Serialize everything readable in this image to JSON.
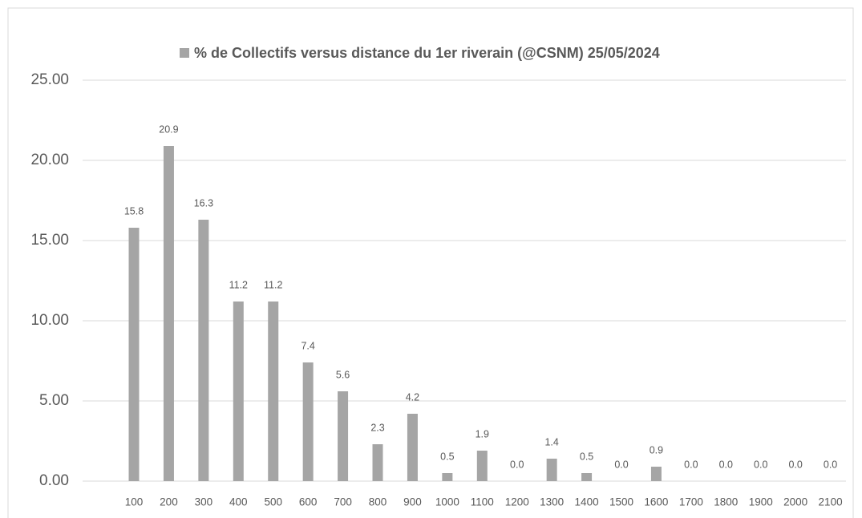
{
  "chart_data": {
    "type": "bar",
    "categories": [
      "100",
      "200",
      "300",
      "400",
      "500",
      "600",
      "700",
      "800",
      "900",
      "1000",
      "1100",
      "1200",
      "1300",
      "1400",
      "1500",
      "1600",
      "1700",
      "1800",
      "1900",
      "2000",
      "2100"
    ],
    "series": [
      {
        "name": "% de Collectifs versus distance du 1er riverain (@CSNM) 25/05/2024",
        "color": "#a5a5a5",
        "values": [
          15.8,
          20.9,
          16.3,
          11.2,
          11.2,
          7.4,
          5.6,
          2.3,
          4.2,
          0.5,
          1.9,
          0,
          1.4,
          0.5,
          0,
          0.9,
          0,
          0,
          0,
          0,
          0
        ],
        "value_labels": [
          "15.8",
          "20.9",
          "16.3",
          "11.2",
          "11.2",
          "7.4",
          "5.6",
          "2.3",
          "4.2",
          "0.5",
          "1.9",
          "0.0",
          "1.4",
          "0.5",
          "0.0",
          "0.9",
          "0.0",
          "0.0",
          "0.0",
          "0.0",
          "0.0"
        ]
      }
    ],
    "ylim": [
      0,
      25
    ],
    "yticks": [
      {
        "value": 0,
        "label": "0.00"
      },
      {
        "value": 5,
        "label": "5.00"
      },
      {
        "value": 10,
        "label": "10.00"
      },
      {
        "value": 15,
        "label": "15.00"
      },
      {
        "value": 20,
        "label": "20.00"
      },
      {
        "value": 25,
        "label": "25.00"
      }
    ],
    "grid": true,
    "legend": "top"
  }
}
